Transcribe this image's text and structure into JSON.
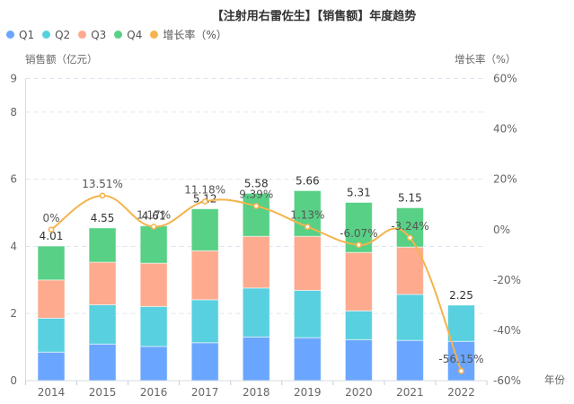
{
  "chart_data": {
    "type": "bar",
    "title": "【注射用右雷佐生】【销售额】年度趋势",
    "xlabel": "年份",
    "ylabel": "销售额（亿元）",
    "ylabel_right": "增长率（%）",
    "categories": [
      "2014",
      "2015",
      "2016",
      "2017",
      "2018",
      "2019",
      "2020",
      "2021",
      "2022"
    ],
    "stacked": true,
    "series": [
      {
        "name": "Q1",
        "type": "bar",
        "color": "#6aa6ff",
        "values": [
          0.85,
          1.09,
          1.02,
          1.13,
          1.3,
          1.28,
          1.22,
          1.2,
          1.17
        ]
      },
      {
        "name": "Q2",
        "type": "bar",
        "color": "#58d0df",
        "values": [
          1.01,
          1.17,
          1.19,
          1.28,
          1.46,
          1.41,
          0.86,
          1.37,
          1.08
        ]
      },
      {
        "name": "Q3",
        "type": "bar",
        "color": "#fdaa8e",
        "values": [
          1.14,
          1.27,
          1.29,
          1.46,
          1.54,
          1.61,
          1.74,
          1.41,
          0
        ]
      },
      {
        "name": "Q4",
        "type": "bar",
        "color": "#58d085",
        "values": [
          1.01,
          1.02,
          1.11,
          1.25,
          1.28,
          1.36,
          1.49,
          1.17,
          0
        ]
      },
      {
        "name": "增长率（%）",
        "type": "line",
        "axis": "right",
        "color": "#f5b34d",
        "values": [
          0,
          13.51,
          1.17,
          11.18,
          9.39,
          1.13,
          -6.07,
          -3.24,
          -56.15
        ]
      }
    ],
    "totals": [
      "4.01",
      "4.55",
      "4.61",
      "5.12",
      "5.58",
      "5.66",
      "5.31",
      "5.15",
      "2.25"
    ],
    "growth_labels": [
      "0%",
      "13.51%",
      "1.17%",
      "11.18%",
      "9.39%",
      "1.13%",
      "-6.07%",
      "-3.24%",
      "-56.15%"
    ],
    "ylim": [
      0,
      9
    ],
    "yticks": [
      "0",
      "2",
      "4",
      "6",
      "8",
      "9"
    ],
    "ytick_values": [
      0,
      2,
      4,
      6,
      8,
      9
    ],
    "ylim_right": [
      -60,
      60
    ],
    "yticks_right": [
      "-60%",
      "-40%",
      "-20%",
      "0%",
      "20%",
      "40%",
      "60%"
    ],
    "ytick_right_values": [
      -60,
      -40,
      -20,
      0,
      20,
      40,
      60
    ],
    "grid": true,
    "legend": "top-left"
  }
}
